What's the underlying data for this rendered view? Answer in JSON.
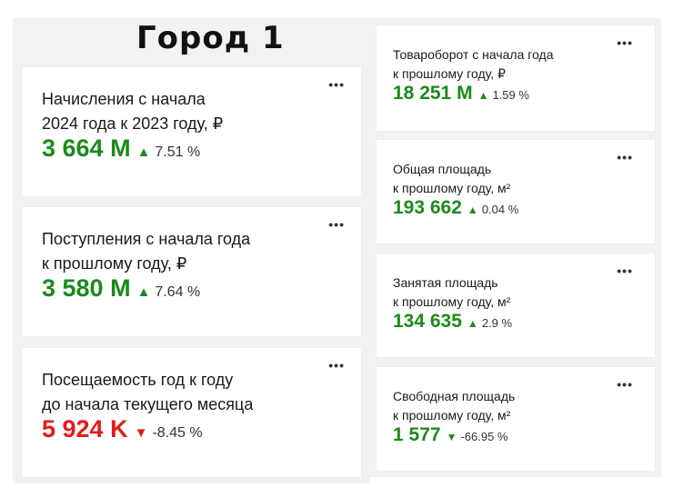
{
  "city_title": "Город 1",
  "menu_glyph": "•••",
  "left_cards": [
    {
      "label_line1": "Начисления с начала",
      "label_line2": "2024 года к 2023 году, ₽",
      "value": "3 664 M",
      "arrow": "▲",
      "change": "7.51 %",
      "trend": "up"
    },
    {
      "label_line1": "Поступления с начала года",
      "label_line2": "к прошлому году, ₽",
      "value": "3 580 M",
      "arrow": "▲",
      "change": "7.64 %",
      "trend": "up"
    },
    {
      "label_line1": "Посещаемость год к году",
      "label_line2": "до начала текущего месяца",
      "value": "5 924 K",
      "arrow": "▼",
      "change": "-8.45 %",
      "trend": "down"
    }
  ],
  "right_cards": [
    {
      "label_line1": "Товароборот с начала года",
      "label_line2": "к прошлому году, ₽",
      "value": "18 251 M",
      "arrow": "▲",
      "change": "1.59 %",
      "trend": "up"
    },
    {
      "label_line1": "Общая площадь",
      "label_line2": "к прошлому году, м²",
      "value": "193 662",
      "arrow": "▲",
      "change": "0.04 %",
      "trend": "up"
    },
    {
      "label_line1": "Занятая площадь",
      "label_line2": "к прошлому году, м²",
      "value": "134 635",
      "arrow": "▲",
      "change": "2.9 %",
      "trend": "up"
    },
    {
      "label_line1": "Свободная площадь",
      "label_line2": "к прошлому году, м²",
      "value": "1 577",
      "arrow": "▼",
      "change": "-66.95 %",
      "trend": "down"
    }
  ],
  "colors": {
    "up": "#1b8a1b",
    "down": "#e31b1b"
  }
}
